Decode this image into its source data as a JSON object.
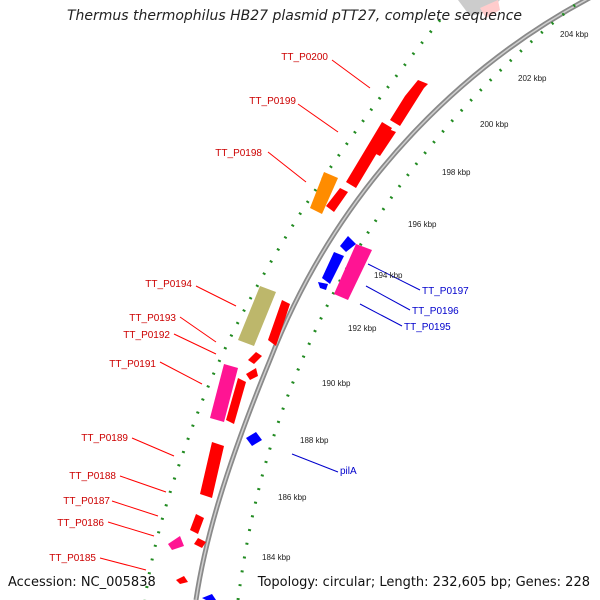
{
  "title": "Thermus thermophilus HB27 plasmid pTT27, complete sequence",
  "footer": {
    "accession": "Accession: NC_005838",
    "summary": "Topology: circular; Length: 232,605 bp; Genes: 228"
  },
  "ticks": [
    "204 kbp",
    "202 kbp",
    "200 kbp",
    "198 kbp",
    "196 kbp",
    "194 kbp",
    "192 kbp",
    "190 kbp",
    "188 kbp",
    "186 kbp",
    "184 kbp"
  ],
  "genes_left": [
    "TT_P0200",
    "TT_P0199",
    "TT_P0198",
    "TT_P0194",
    "TT_P0193",
    "TT_P0192",
    "TT_P0191",
    "TT_P0189",
    "TT_P0188",
    "TT_P0187",
    "TT_P0186",
    "TT_P0185"
  ],
  "genes_right": [
    "TT_P0197",
    "TT_P0196",
    "TT_P0195",
    "pilA"
  ],
  "colors": {
    "forward": "#ff0000",
    "reverse": "#0000ff",
    "left_label": "#cc0000",
    "right_label": "#0000cc",
    "orange": "#ff8c00",
    "olive": "#bdb76b",
    "magenta": "#ff1493",
    "backbone": "#888888",
    "tick": "#228b22"
  }
}
